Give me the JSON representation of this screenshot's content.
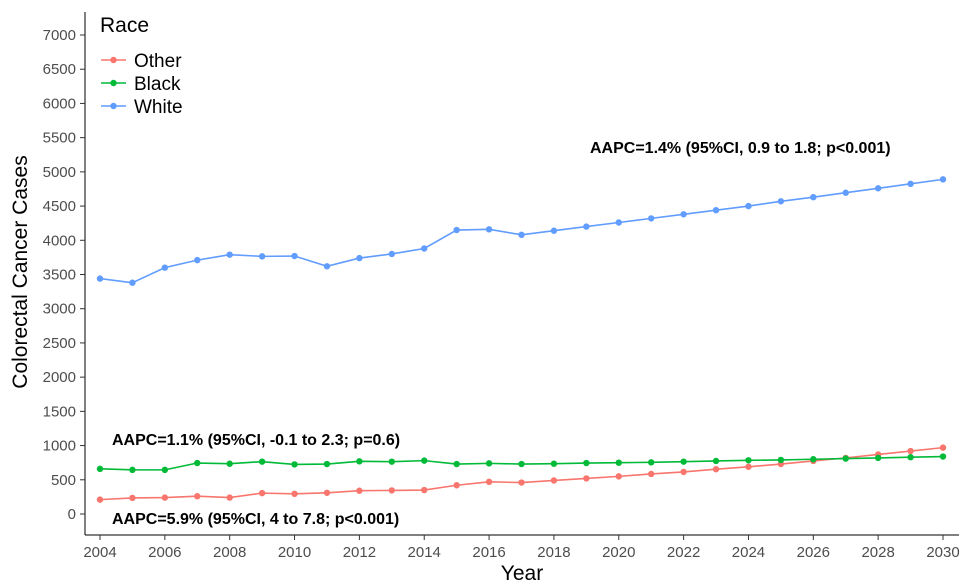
{
  "chart_data": {
    "type": "line",
    "xlabel": "Year",
    "ylabel": "Colorectal Cancer Cases",
    "xlim": [
      2004,
      2030
    ],
    "ylim": [
      0,
      7000
    ],
    "x_ticks": [
      "2004",
      "2006",
      "2008",
      "2010",
      "2012",
      "2014",
      "2016",
      "2018",
      "2020",
      "2022",
      "2024",
      "2026",
      "2028",
      "2030"
    ],
    "y_ticks": [
      "0",
      "500",
      "1000",
      "1500",
      "2000",
      "2500",
      "3000",
      "3500",
      "4000",
      "4500",
      "5000",
      "5500",
      "6000",
      "6500",
      "7000"
    ],
    "grid": false,
    "legend": {
      "title": "Race",
      "position": "top-left",
      "entries": [
        "Other",
        "Black",
        "White"
      ]
    },
    "x": [
      2004,
      2005,
      2006,
      2007,
      2008,
      2009,
      2010,
      2011,
      2012,
      2013,
      2014,
      2015,
      2016,
      2017,
      2018,
      2019,
      2020,
      2021,
      2022,
      2023,
      2024,
      2025,
      2026,
      2027,
      2028,
      2029,
      2030
    ],
    "series": [
      {
        "name": "Other",
        "color": "#F8766D",
        "values": [
          210,
          235,
          240,
          260,
          240,
          305,
          295,
          310,
          340,
          345,
          350,
          420,
          470,
          460,
          490,
          520,
          550,
          585,
          615,
          655,
          690,
          730,
          775,
          820,
          870,
          920,
          970
        ]
      },
      {
        "name": "Black",
        "color": "#00BA38",
        "values": [
          660,
          645,
          645,
          745,
          735,
          765,
          725,
          730,
          770,
          765,
          780,
          730,
          740,
          730,
          735,
          745,
          750,
          755,
          765,
          775,
          785,
          790,
          800,
          810,
          820,
          830,
          840
        ]
      },
      {
        "name": "White",
        "color": "#619CFF",
        "values": [
          3440,
          3380,
          3600,
          3710,
          3790,
          3765,
          3770,
          3620,
          3740,
          3800,
          3880,
          4150,
          4160,
          4080,
          4140,
          4200,
          4260,
          4320,
          4380,
          4440,
          4500,
          4570,
          4630,
          4695,
          4760,
          4825,
          4890
        ]
      }
    ],
    "annotations": [
      "AAPC=1.4% (95%CI,  0.9 to 1.8; p<0.001)",
      "AAPC=1.1% (95%CI,  -0.1 to 2.3; p=0.6)",
      "AAPC=5.9% (95%CI,  4 to 7.8; p<0.001)"
    ]
  }
}
